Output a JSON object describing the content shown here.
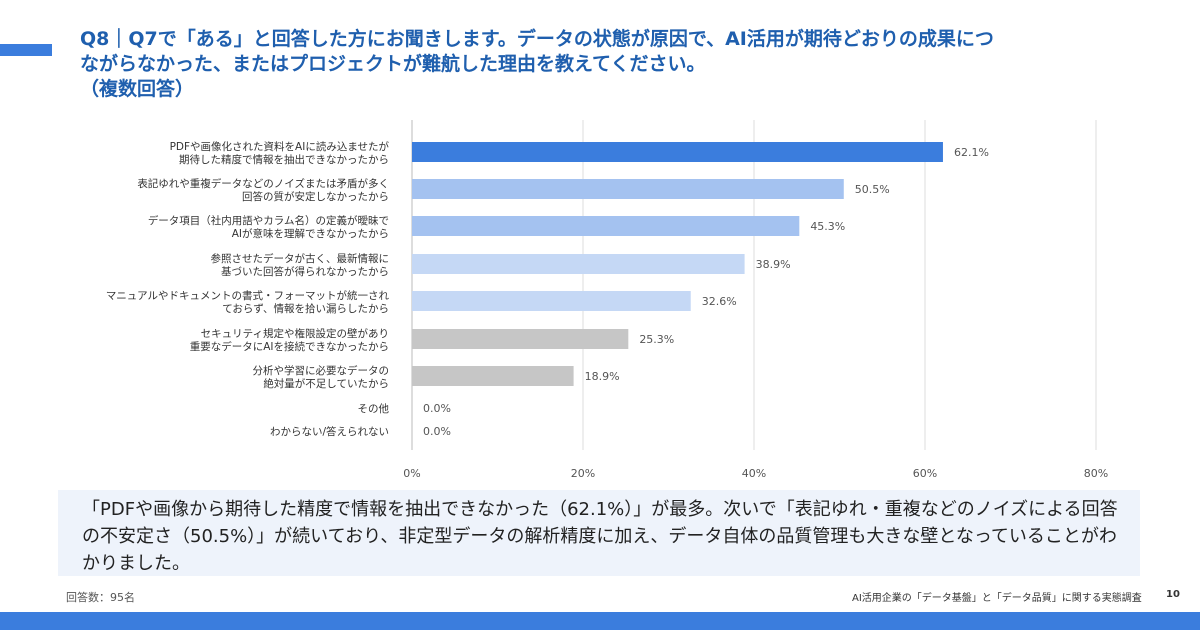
{
  "title": "Q8｜Q7で「ある」と回答した方にお聞きします。データの状態が原因で、AI活用が期待どおりの成果につ\nながらなかった、またはプロジェクトが難航した理由を教えてください。\n（複数回答）",
  "summary": "「PDFや画像から期待した精度で情報を抽出できなかった（62.1%）」が最多。次いで「表記ゆれ・重複などのノイズによる回答の不安定さ（50.5%）」が続いており、非定型データの解析精度に加え、データ自体の品質管理も大きな壁となっていることがわかりました。",
  "footer": {
    "respondents": "回答数：95名",
    "survey_name": "AI活用企業の「データ基盤」と「データ品質」に関する実態調査",
    "page": "10"
  },
  "chart_data": {
    "type": "bar",
    "orientation": "horizontal",
    "categories": [
      [
        "PDFや画像化された資料をAIに読み込ませたが",
        "期待した精度で情報を抽出できなかったから"
      ],
      [
        "表記ゆれや重複データなどのノイズまたは矛盾が多く",
        "回答の質が安定しなかったから"
      ],
      [
        "データ項目（社内用語やカラム名）の定義が曖昧で",
        "AIが意味を理解できなかったから"
      ],
      [
        "参照させたデータが古く、最新情報に",
        "基づいた回答が得られなかったから"
      ],
      [
        "マニュアルやドキュメントの書式・フォーマットが統一され",
        "ておらず、情報を拾い漏らしたから"
      ],
      [
        "セキュリティ規定や権限設定の壁があり",
        "重要なデータにAIを接続できなかったから"
      ],
      [
        "分析や学習に必要なデータの",
        "絶対量が不足していたから"
      ],
      [
        "その他"
      ],
      [
        "わからない/答えられない"
      ]
    ],
    "values": [
      62.1,
      50.5,
      45.3,
      38.9,
      32.6,
      25.3,
      18.9,
      0.0,
      0.0
    ],
    "value_labels": [
      "62.1%",
      "50.5%",
      "45.3%",
      "38.9%",
      "32.6%",
      "25.3%",
      "18.9%",
      "0.0%",
      "0.0%"
    ],
    "bar_colors": [
      "#3b7ddd",
      "#a4c2f0",
      "#a4c2f0",
      "#c5d8f5",
      "#c5d8f5",
      "#c6c6c6",
      "#c6c6c6",
      "#c6c6c6",
      "#c6c6c6"
    ],
    "xlim": [
      0,
      80
    ],
    "xticks": [
      0,
      20,
      40,
      60,
      80
    ],
    "xtick_labels": [
      "0%",
      "20%",
      "40%",
      "60%",
      "80%"
    ],
    "grid": true,
    "legend": "none"
  }
}
